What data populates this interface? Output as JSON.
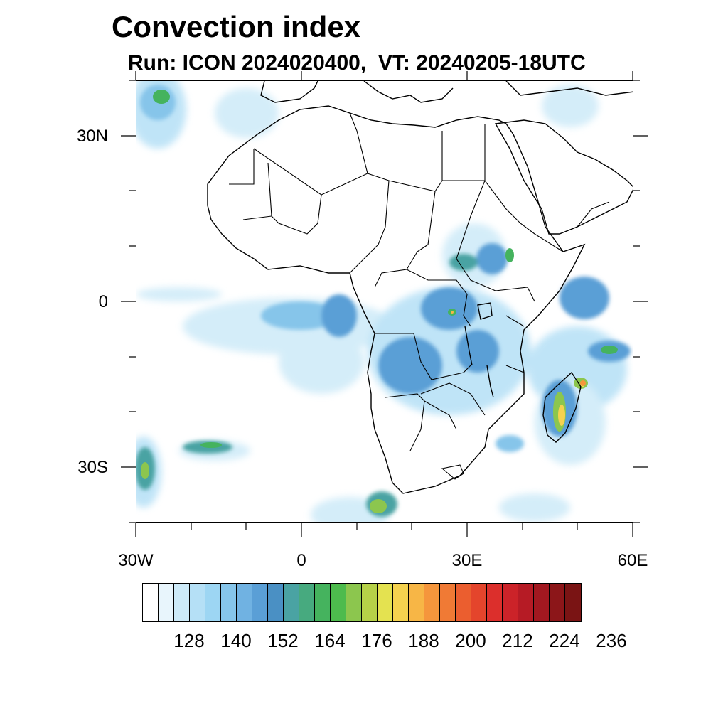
{
  "title": "Convection index",
  "subtitle": "Run: ICON 2024020400,  VT: 20240205-18UTC",
  "map": {
    "lat_labels": [
      "30N",
      "0",
      "30S"
    ],
    "lon_labels": [
      "30W",
      "0",
      "30E",
      "60E"
    ],
    "lon_range": [
      -30,
      60
    ],
    "lat_range": [
      -40,
      40
    ]
  },
  "colorbar": {
    "colors": [
      "#ffffff",
      "#e8f5fc",
      "#cdeaf8",
      "#b5e0f6",
      "#9dd6f3",
      "#86c5ea",
      "#70b2e2",
      "#5a9fd6",
      "#4a90c4",
      "#4aa3a3",
      "#47aa7f",
      "#45b35e",
      "#4dbb4d",
      "#8cc64e",
      "#b6d148",
      "#e4e250",
      "#f5d24f",
      "#f7b646",
      "#f5963c",
      "#f07a35",
      "#eb5e2f",
      "#e4452c",
      "#dc2f2c",
      "#cc2329",
      "#b61b25",
      "#a21820",
      "#8c1619",
      "#7a1414"
    ],
    "labels": [
      "128",
      "140",
      "152",
      "164",
      "176",
      "188",
      "200",
      "212",
      "224",
      "236"
    ]
  }
}
